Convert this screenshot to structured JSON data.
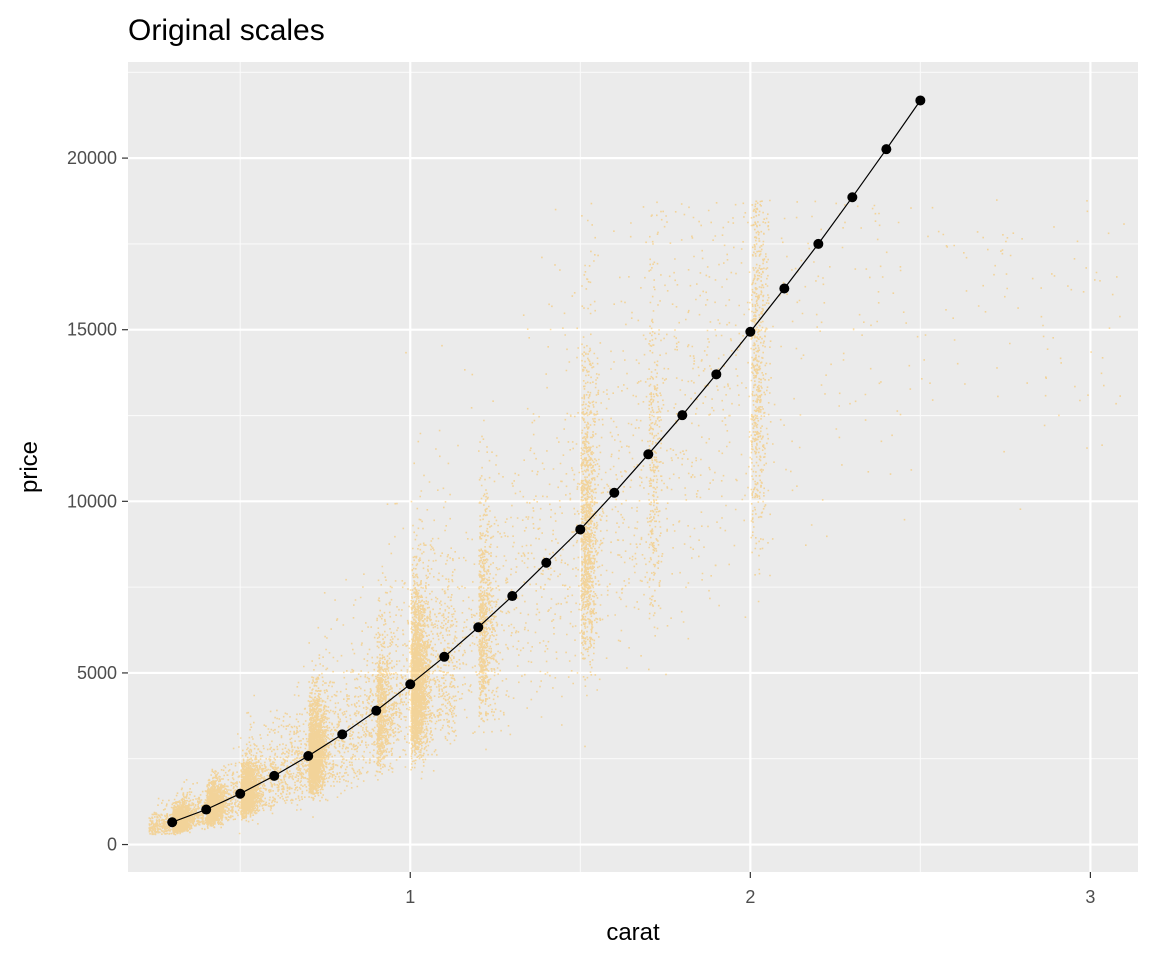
{
  "chart_data": {
    "type": "scatter",
    "title": "Original scales",
    "xlabel": "carat",
    "ylabel": "price",
    "xlim": [
      0.17,
      3.14
    ],
    "ylim": [
      -800,
      22800
    ],
    "x_ticks": [
      1,
      2,
      3
    ],
    "x_tick_labels": [
      "1",
      "2",
      "3"
    ],
    "y_ticks": [
      0,
      5000,
      10000,
      15000,
      20000
    ],
    "y_tick_labels": [
      "0",
      "5000",
      "10000",
      "15000",
      "20000"
    ],
    "grid": true,
    "panel_background": "#ebebeb",
    "colors": {
      "points": "#ffa500",
      "fit_line": "#000000"
    },
    "series": [
      {
        "kind": "fit",
        "x": [
          0.3,
          0.4,
          0.5,
          0.6,
          0.7,
          0.8,
          0.9,
          1.0,
          1.1,
          1.2,
          1.3,
          1.4,
          1.5,
          1.6,
          1.7,
          1.8,
          1.9,
          2.0,
          2.1,
          2.2,
          2.3,
          2.4,
          2.5
        ],
        "y": [
          650,
          1020,
          1480,
          2000,
          2580,
          3210,
          3900,
          4670,
          5470,
          6330,
          7240,
          8210,
          9180,
          10250,
          11370,
          12510,
          13700,
          14940,
          16200,
          17500,
          18860,
          20260,
          21680
        ]
      }
    ]
  }
}
